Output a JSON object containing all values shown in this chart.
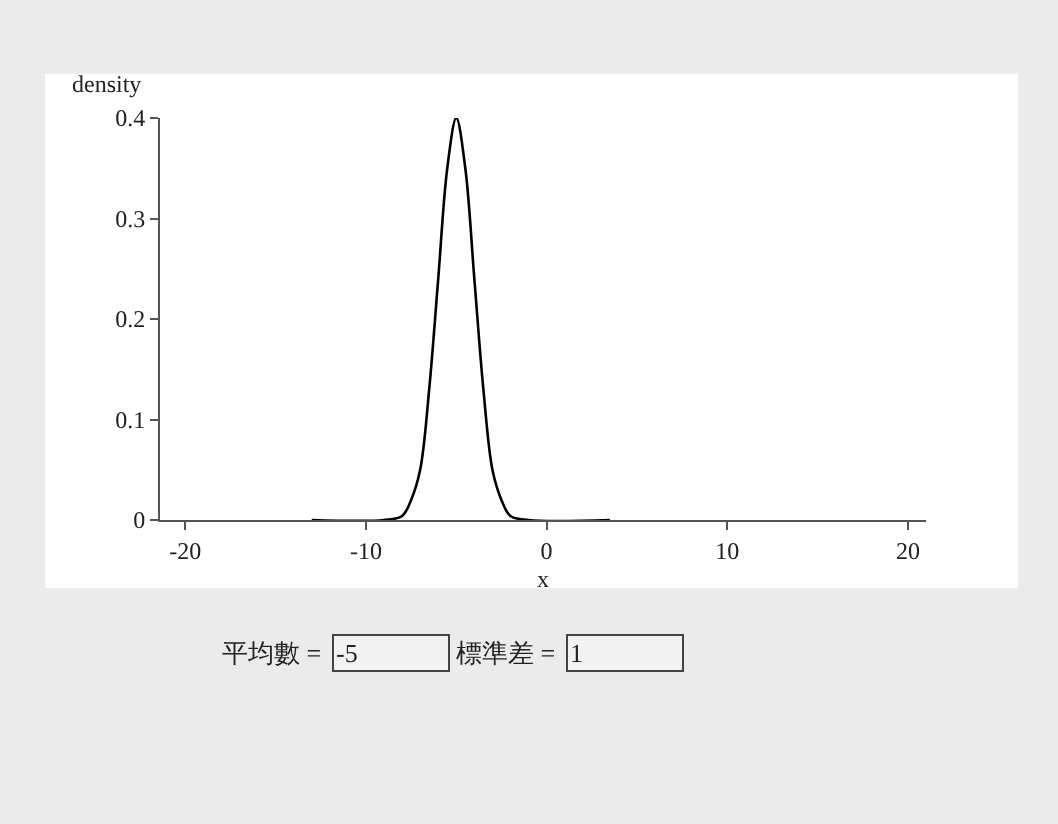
{
  "chart_data": {
    "type": "line",
    "xlabel": "x",
    "ylabel": "density",
    "x": [
      -13,
      -9,
      -8,
      -7.5,
      -7,
      -6.5,
      -6,
      -5.5,
      -5,
      -4.5,
      -4,
      -3.5,
      -3,
      -2.5,
      -2,
      -1,
      3.5
    ],
    "series": [
      {
        "color": "#000000",
        "values": [
          0,
          0,
          0.004,
          0.02,
          0.05,
          0.13,
          0.24,
          0.35,
          0.4,
          0.35,
          0.24,
          0.13,
          0.05,
          0.02,
          0.004,
          0,
          0
        ]
      }
    ],
    "xlim": [
      -21.4,
      21
    ],
    "ylim": [
      0,
      0.4
    ],
    "xticks": [
      -20,
      -10,
      0,
      10,
      20
    ],
    "yticks": [
      0,
      0.1,
      0.2,
      0.3,
      0.4
    ],
    "legend": false,
    "marker": "none",
    "line_style": "solid",
    "annotations": [
      "平均數 =",
      "-5",
      "標準差 =",
      "1"
    ]
  }
}
